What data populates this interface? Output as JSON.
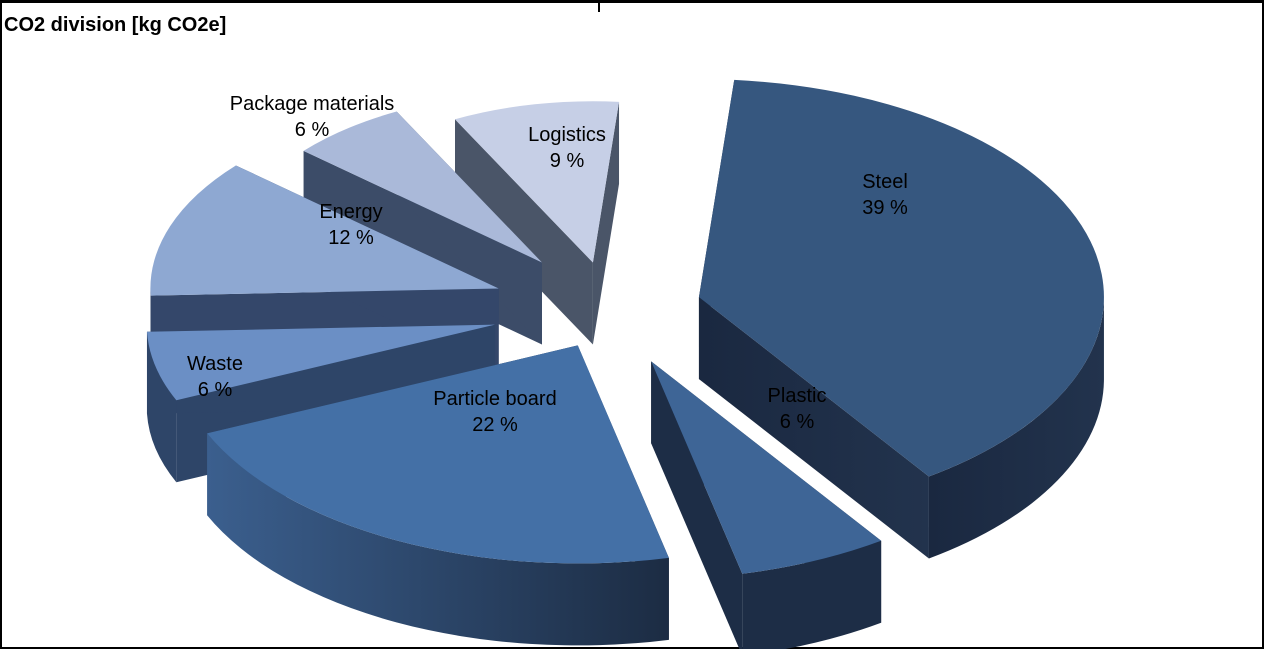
{
  "chart_data": {
    "type": "pie",
    "title": "CO2 division [kg CO2e]",
    "slices": [
      {
        "label": "Steel",
        "value": 39,
        "value_label": "39 %",
        "color": "#36577f"
      },
      {
        "label": "Plastic",
        "value": 6,
        "value_label": "6 %",
        "color": "#3e6596"
      },
      {
        "label": "Particle board",
        "value": 22,
        "value_label": "22 %",
        "color": "#4470a6"
      },
      {
        "label": "Waste",
        "value": 6,
        "value_label": "6 %",
        "color": "#6b8fc5"
      },
      {
        "label": "Energy",
        "value": 12,
        "value_label": "12 %",
        "color": "#8ea8d2"
      },
      {
        "label": "Package materials",
        "value": 6,
        "value_label": "6 %",
        "color": "#aab9d9"
      },
      {
        "label": "Logistics",
        "value": 9,
        "value_label": "9 %",
        "color": "#c6cfe6"
      }
    ],
    "exploded": true,
    "three_d": true
  }
}
